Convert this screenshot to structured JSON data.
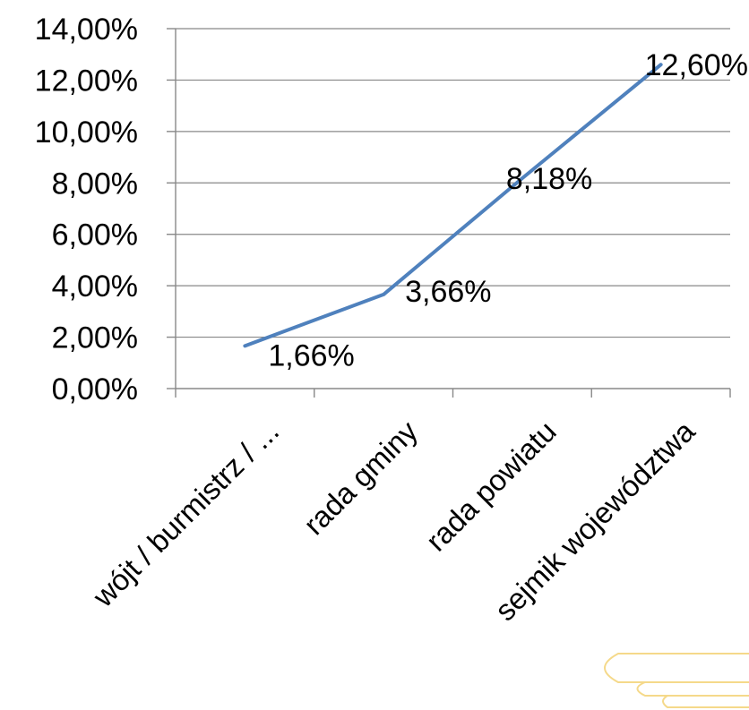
{
  "chart_data": {
    "type": "line",
    "categories": [
      "wójt / burmistrz / ...",
      "rada gminy",
      "rada powiatu",
      "sejmik województwa"
    ],
    "series": [
      {
        "values": [
          1.66,
          3.66,
          8.18,
          12.6
        ]
      }
    ],
    "data_labels": [
      "1,66%",
      "3,66%",
      "8,18%",
      "12,60%"
    ],
    "y_ticks": [
      {
        "value": 0,
        "label": "0,00%"
      },
      {
        "value": 2,
        "label": "2,00%"
      },
      {
        "value": 4,
        "label": "4,00%"
      },
      {
        "value": 6,
        "label": "6,00%"
      },
      {
        "value": 8,
        "label": "8,00%"
      },
      {
        "value": 10,
        "label": "10,00%"
      },
      {
        "value": 12,
        "label": "12,00%"
      },
      {
        "value": 14,
        "label": "14,00%"
      }
    ],
    "ylim": [
      0,
      14
    ],
    "grid": true,
    "legend": "none",
    "colors": {
      "line": "#4f81bd",
      "grid": "#888888",
      "decoration": "#f5d98a"
    }
  }
}
